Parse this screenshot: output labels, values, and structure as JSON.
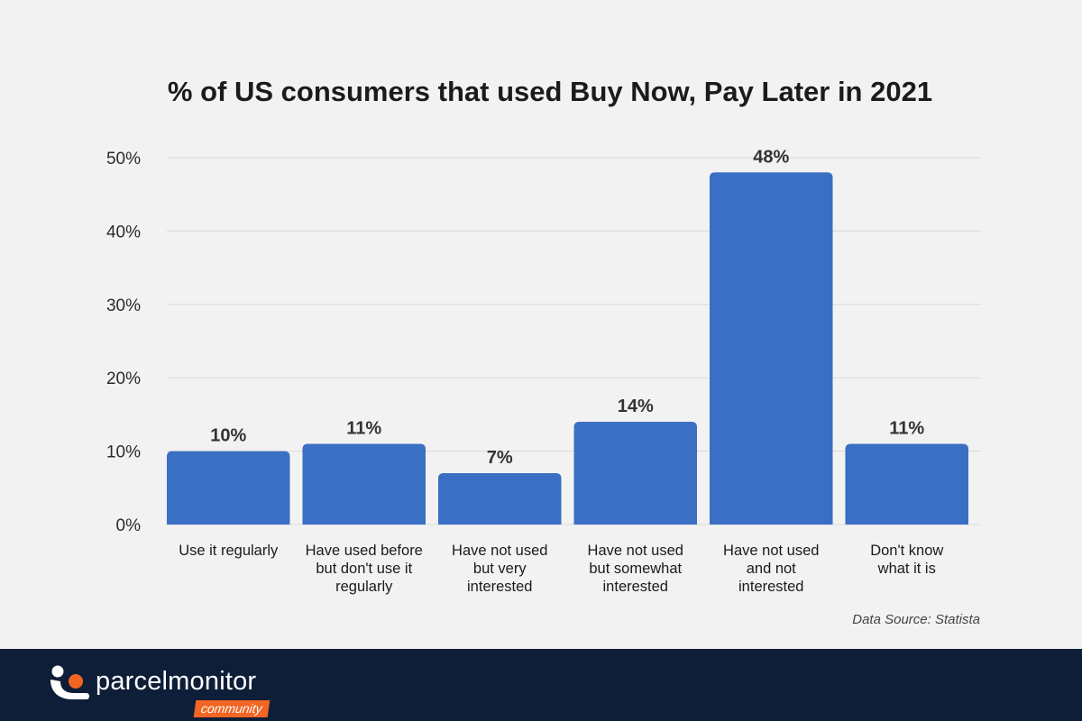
{
  "chart_data": {
    "type": "bar",
    "title": "% of US consumers that used Buy Now, Pay Later in 2021",
    "xlabel": "",
    "ylabel": "",
    "ylim": [
      0,
      50
    ],
    "yticks": [
      0,
      10,
      20,
      30,
      40,
      50
    ],
    "ytick_labels": [
      "0%",
      "10%",
      "20%",
      "30%",
      "40%",
      "50%"
    ],
    "grid": true,
    "bar_color": "#3a6fc4",
    "categories": [
      [
        "Use it regularly"
      ],
      [
        "Have used before",
        "but don't use it",
        "regularly"
      ],
      [
        "Have not used",
        "but very",
        "interested"
      ],
      [
        "Have not used",
        "but somewhat",
        "interested"
      ],
      [
        "Have not used",
        "and not",
        "interested"
      ],
      [
        "Don't know",
        "what it is"
      ]
    ],
    "values": [
      10,
      11,
      7,
      14,
      48,
      11
    ],
    "value_labels": [
      "10%",
      "11%",
      "7%",
      "14%",
      "48%",
      "11%"
    ],
    "source": "Data Source: Statista"
  },
  "footer": {
    "brand_name": "parcelmonitor",
    "brand_tag": "community",
    "logo_icon": "parcelmonitor-logo-icon",
    "background": "#0e1e38",
    "accent": "#f26522"
  }
}
